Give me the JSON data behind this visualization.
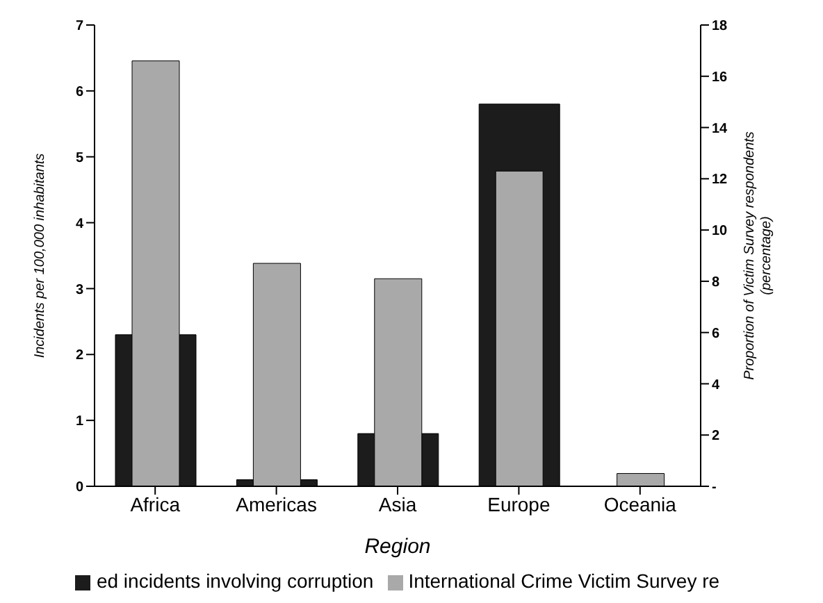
{
  "chart_data": {
    "type": "bar",
    "xlabel": "Region",
    "ylabel": "Incidents per 100,000 inhabitants",
    "y2label": "Proportion of Victim Survey respondents (percentage)",
    "categories": [
      "Africa",
      "Americas",
      "Asia",
      "Europe",
      "Oceania"
    ],
    "series": [
      {
        "name": "ed incidents involving corruption",
        "color": "#1c1c1c",
        "values": [
          2.3,
          0.1,
          0.8,
          5.8,
          0
        ]
      },
      {
        "name": "International Crime Victim Survey re",
        "color": "#a9a9a9",
        "axis": "y2",
        "values": [
          16.6,
          8.7,
          8.1,
          12.3,
          0.5
        ]
      }
    ],
    "ylim": [
      0,
      7
    ],
    "yticks": [
      0,
      1,
      2,
      3,
      4,
      5,
      6,
      7
    ],
    "y2lim": [
      0,
      18
    ],
    "y2ticks": [
      {
        "value": 0,
        "label": "-"
      },
      2,
      4,
      6,
      8,
      10,
      12,
      14,
      16,
      18
    ],
    "legend": "bottom"
  }
}
